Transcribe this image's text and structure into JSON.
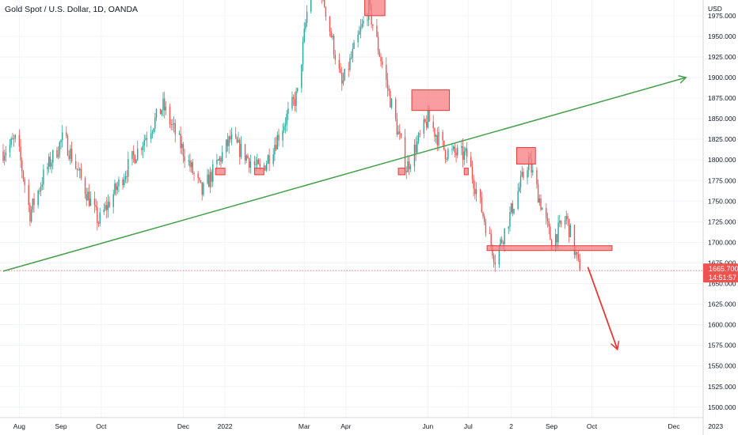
{
  "header": {
    "title": "Gold Spot / U.S. Dollar, 1D, OANDA"
  },
  "price_badge": {
    "price": "1665.700",
    "countdown": "14:51:57"
  },
  "colors": {
    "up": "#26a69a",
    "down": "#ef5350",
    "zone_fill": "#f77c80",
    "zone_stroke": "#e53935",
    "trend_line": "#43a047",
    "projection_arrow": "#e53935",
    "badge": "#ef5350"
  },
  "chart_data": {
    "type": "candlestick",
    "title": "Gold Spot / U.S. Dollar, 1D, OANDA",
    "yaxis": {
      "unit_label": "USD",
      "range": [
        1488,
        1985
      ],
      "ticks": [
        "1500.000",
        "1525.000",
        "1550.000",
        "1575.000",
        "1600.000",
        "1625.000",
        "1650.000",
        "1675.000",
        "1700.000",
        "1725.000",
        "1750.000",
        "1775.000",
        "1800.000",
        "1825.000",
        "1850.000",
        "1875.000",
        "1900.000",
        "1925.000",
        "1950.000",
        "1975.000"
      ]
    },
    "xaxis": {
      "ticks": [
        "Aug",
        "Sep",
        "Oct",
        "Dec",
        "2022",
        "Mar",
        "Apr",
        "Jun",
        "Jul",
        "2",
        "Sep",
        "Oct",
        "Dec",
        "2023"
      ]
    },
    "grid": true,
    "last_price": 1665.7,
    "approx_path": [
      [
        "2021-07-20",
        1810
      ],
      [
        "2021-07-30",
        1825
      ],
      [
        "2021-08-09",
        1735
      ],
      [
        "2021-08-20",
        1785
      ],
      [
        "2021-09-03",
        1828
      ],
      [
        "2021-09-29",
        1725
      ],
      [
        "2021-10-22",
        1795
      ],
      [
        "2021-11-16",
        1865
      ],
      [
        "2021-12-15",
        1760
      ],
      [
        "2022-01-05",
        1825
      ],
      [
        "2022-01-28",
        1785
      ],
      [
        "2022-02-24",
        1880
      ],
      [
        "2022-03-08",
        2050
      ],
      [
        "2022-03-29",
        1890
      ],
      [
        "2022-04-18",
        1985
      ],
      [
        "2022-05-16",
        1790
      ],
      [
        "2022-06-01",
        1850
      ],
      [
        "2022-06-14",
        1810
      ],
      [
        "2022-06-30",
        1805
      ],
      [
        "2022-07-21",
        1680
      ],
      [
        "2022-08-15",
        1800
      ],
      [
        "2022-09-01",
        1700
      ],
      [
        "2022-09-12",
        1730
      ],
      [
        "2022-09-22",
        1665
      ]
    ],
    "annotations": {
      "supply_demand_zones": [
        {
          "date_start": "2022-04-15",
          "date_end": "2022-04-30",
          "price_low": 1975,
          "price_high": 1995
        },
        {
          "date_start": "2022-05-20",
          "date_end": "2022-06-17",
          "price_low": 1860,
          "price_high": 1885
        },
        {
          "date_start": "2022-08-06",
          "date_end": "2022-08-20",
          "price_low": 1795,
          "price_high": 1815
        },
        {
          "date_start": "2021-12-25",
          "date_end": "2022-01-01",
          "price_low": 1782,
          "price_high": 1790
        },
        {
          "date_start": "2022-01-23",
          "date_end": "2022-01-30",
          "price_low": 1782,
          "price_high": 1790
        },
        {
          "date_start": "2022-05-10",
          "date_end": "2022-05-15",
          "price_low": 1782,
          "price_high": 1790
        },
        {
          "date_start": "2022-06-28",
          "date_end": "2022-07-01",
          "price_low": 1782,
          "price_high": 1790
        }
      ],
      "support_line": {
        "date_start": "2022-07-15",
        "date_end": "2022-10-16",
        "price": 1693
      },
      "trend_line": {
        "from": [
          "2021-07-20",
          1665
        ],
        "to": [
          "2022-12-10",
          1900
        ],
        "arrow": true
      },
      "projection_arrow": {
        "from": [
          "2022-09-28",
          1670
        ],
        "to": [
          "2022-10-20",
          1570
        ]
      },
      "last_price_line": 1665.7
    }
  }
}
